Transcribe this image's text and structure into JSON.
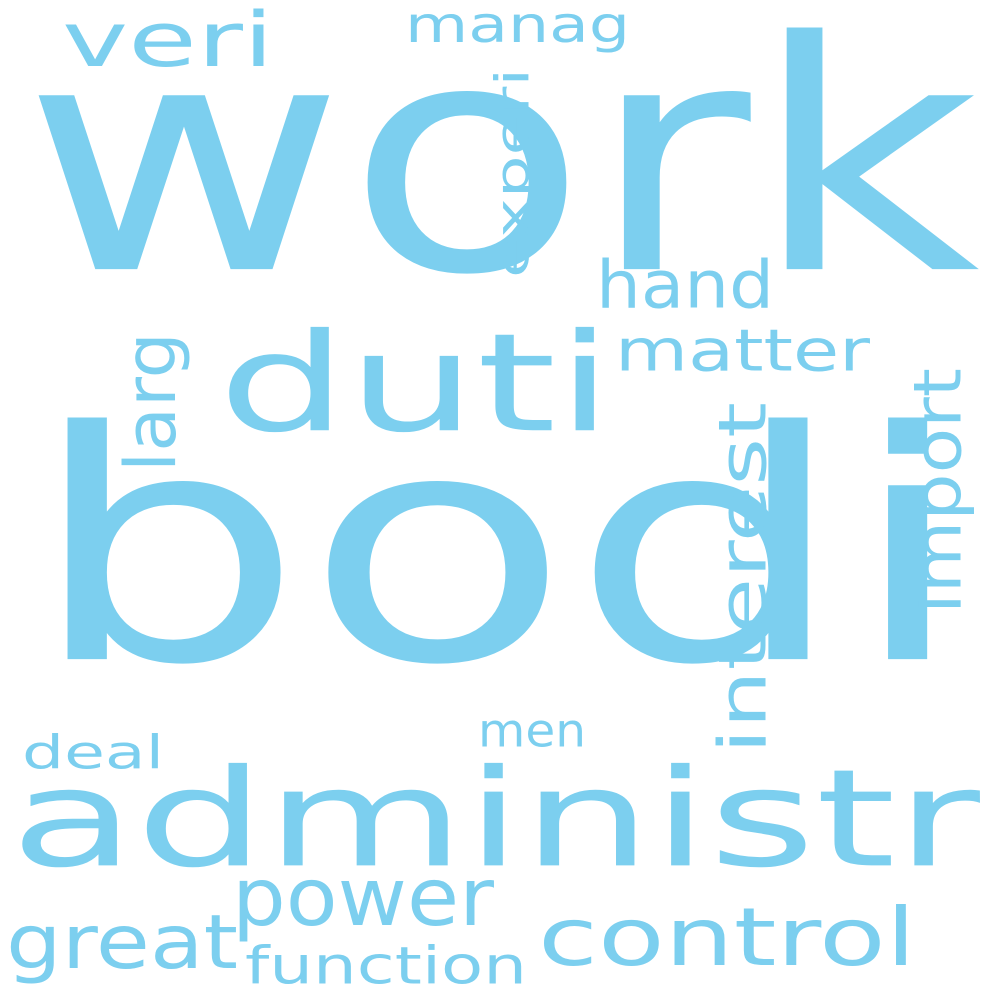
{
  "word_cloud": {
    "color": "#7ccfef",
    "words": [
      {
        "text": "work",
        "orientation": "horizontal"
      },
      {
        "text": "bodi",
        "orientation": "horizontal"
      },
      {
        "text": "administr",
        "orientation": "horizontal"
      },
      {
        "text": "duti",
        "orientation": "horizontal"
      },
      {
        "text": "control",
        "orientation": "horizontal"
      },
      {
        "text": "power",
        "orientation": "horizontal"
      },
      {
        "text": "veri",
        "orientation": "horizontal"
      },
      {
        "text": "manag",
        "orientation": "horizontal"
      },
      {
        "text": "hand",
        "orientation": "horizontal"
      },
      {
        "text": "matter",
        "orientation": "horizontal"
      },
      {
        "text": "experi",
        "orientation": "vertical"
      },
      {
        "text": "larg",
        "orientation": "vertical"
      },
      {
        "text": "interest",
        "orientation": "vertical"
      },
      {
        "text": "import",
        "orientation": "vertical"
      },
      {
        "text": "men",
        "orientation": "horizontal"
      },
      {
        "text": "deal",
        "orientation": "horizontal"
      },
      {
        "text": "great",
        "orientation": "horizontal"
      },
      {
        "text": "function",
        "orientation": "horizontal"
      }
    ]
  }
}
